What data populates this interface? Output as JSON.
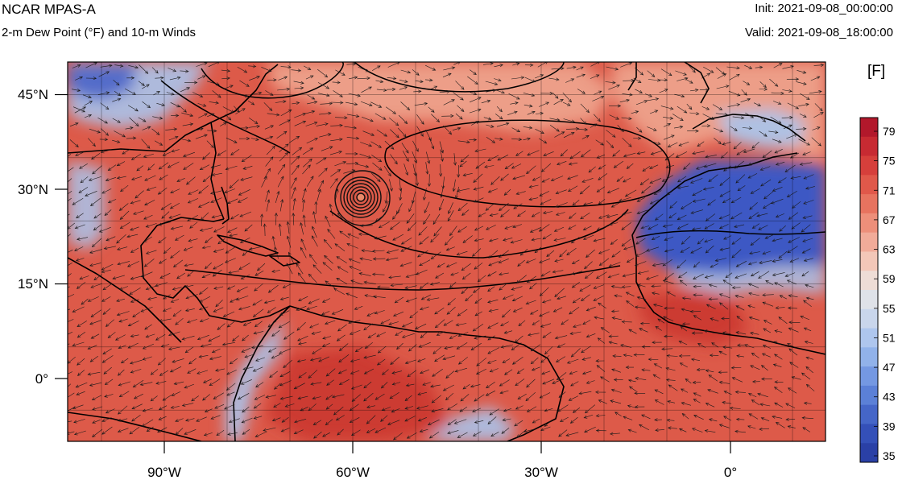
{
  "header": {
    "model": "NCAR MPAS-A",
    "field": "2-m Dew Point (°F) and 10-m Winds",
    "init": "Init: 2021-09-08_00:00:00",
    "valid": "Valid: 2021-09-08_18:00:00"
  },
  "colorbar": {
    "unit": "[F]",
    "labels": [
      "79",
      "75",
      "71",
      "67",
      "63",
      "59",
      "55",
      "51",
      "47",
      "43",
      "39",
      "35"
    ],
    "colors": [
      "#b2182b",
      "#c72a32",
      "#d63f3b",
      "#e0584a",
      "#e7735f",
      "#ed8f7a",
      "#f1ab99",
      "#f3c7b8",
      "#eeddd6",
      "#dfe2e8",
      "#c9d6ec",
      "#aec6ee",
      "#91b2ea",
      "#7498e2",
      "#5b80d7",
      "#4566c8",
      "#3450b8",
      "#2a40a6"
    ]
  },
  "map": {
    "lat_labels": [
      "45°N",
      "30°N",
      "15°N",
      "0°"
    ],
    "lon_labels": [
      "90°W",
      "60°W",
      "30°W",
      "0°"
    ],
    "colors": {
      "warm": "#dd5a49",
      "warm_deep": "#cc3b33",
      "mild": "#eea58f",
      "cool": "#a9c4ec",
      "cold": "#3d58c4",
      "coast": "#000000"
    }
  }
}
